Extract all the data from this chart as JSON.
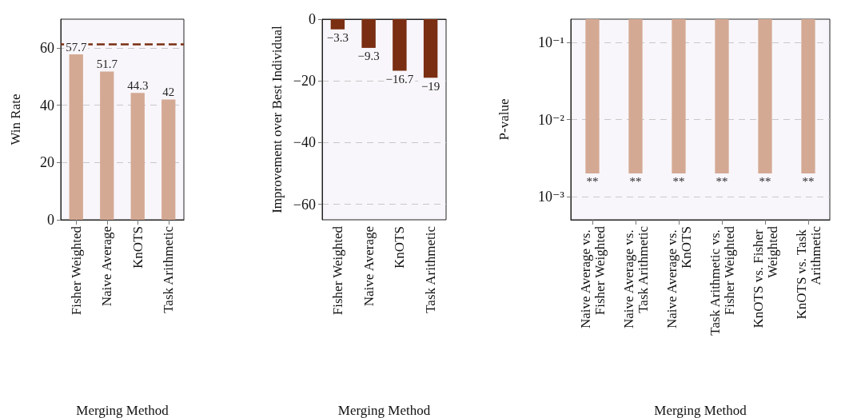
{
  "chart_data": [
    {
      "type": "bar",
      "categories": [
        "Fisher Weighted",
        "Naive Average",
        "KnOTS",
        "Task Arithmetic"
      ],
      "values": [
        57.7,
        51.7,
        44.3,
        42
      ],
      "color": "#d4a994",
      "xlabel": "Merging Method",
      "ylabel": "Win Rate",
      "ylim": [
        0,
        70
      ],
      "yticks": [
        0,
        20,
        40,
        60
      ],
      "grid": "y",
      "data_labels": true,
      "ref_lines": [
        {
          "axis": "y",
          "value": 61.4,
          "color": "#7a2e12",
          "line_style": "dashed"
        }
      ]
    },
    {
      "type": "bar",
      "categories": [
        "Fisher Weighted",
        "Naive Average",
        "KnOTS",
        "Task Arithmetic"
      ],
      "values": [
        -3.3,
        -9.3,
        -16.7,
        -19
      ],
      "color": "#7a2e12",
      "xlabel": "Merging Method",
      "ylabel": "Improvement over Best Individual",
      "ylim": [
        -65,
        0
      ],
      "yticks": [
        0,
        -20,
        -40,
        -60
      ],
      "grid": "y",
      "data_labels": true
    },
    {
      "type": "bar",
      "categories": [
        "Naive Average vs. Fisher Weighted",
        "Naive Average vs. Task Arithmetic",
        "Naive Average vs. KnOTS",
        "Task Arithmetic vs. Fisher Weighted",
        "KnOTS vs. Fisher Weighted",
        "KnOTS vs. Task Arithmetic"
      ],
      "base": [
        0.002,
        0.002,
        0.002,
        0.002,
        0.002,
        0.002
      ],
      "values": [
        0.198,
        0.198,
        0.198,
        0.198,
        0.198,
        0.198
      ],
      "value_labels": [
        "**",
        "**",
        "**",
        "**",
        "**",
        "**"
      ],
      "color": "#d4a994",
      "xlabel": "Merging Method",
      "ylabel": "P-value",
      "log": "y",
      "ylim": [
        0.0005,
        0.2
      ],
      "yticks": [
        {
          "value": 0.001,
          "label": "10⁻³"
        },
        {
          "value": 0.01,
          "label": "10⁻²"
        },
        {
          "value": 0.1,
          "label": "10⁻¹"
        }
      ],
      "grid": "y"
    }
  ]
}
